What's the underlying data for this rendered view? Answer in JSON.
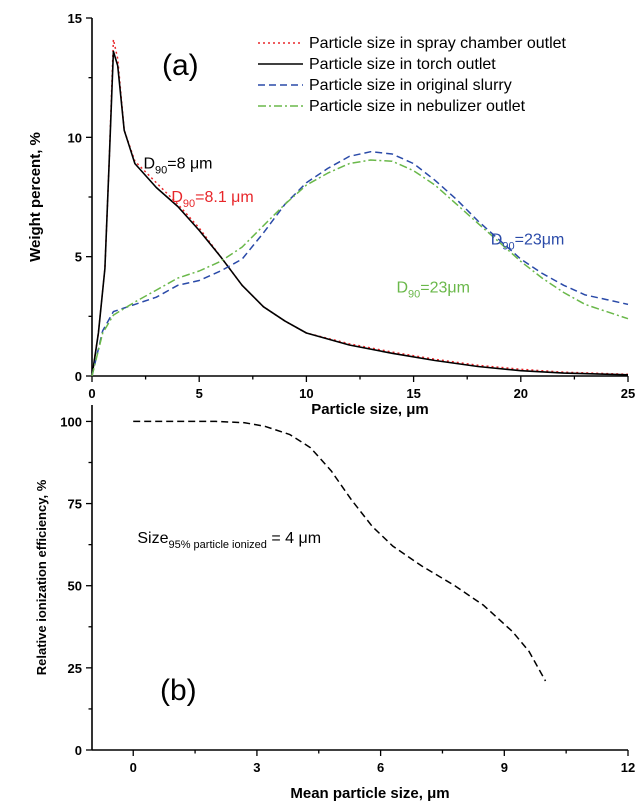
{
  "chart_data": [
    {
      "type": "line",
      "panel_label": "(a)",
      "xlabel": "Particle size, μm",
      "ylabel": "Weight percent, %",
      "xlim": [
        0,
        25
      ],
      "ylim": [
        0,
        15
      ],
      "xticks": [
        0,
        5,
        10,
        15,
        20,
        25
      ],
      "yticks": [
        0,
        5,
        10,
        15
      ],
      "grid": false,
      "legend_placement": "top-right",
      "series": [
        {
          "name": "Particle size in spray chamber outlet",
          "color": "#e8262a",
          "style": "dotted",
          "points": [
            [
              0,
              0
            ],
            [
              0.3,
              1.8
            ],
            [
              0.6,
              4.5
            ],
            [
              0.8,
              9
            ],
            [
              1.0,
              14.1
            ],
            [
              1.2,
              13.3
            ],
            [
              1.5,
              10.3
            ],
            [
              2,
              9.0
            ],
            [
              3,
              8.1
            ],
            [
              4,
              7.2
            ],
            [
              5,
              6.2
            ],
            [
              6,
              5.0
            ],
            [
              7,
              3.8
            ],
            [
              8,
              2.9
            ],
            [
              9,
              2.3
            ],
            [
              10,
              1.8
            ],
            [
              12,
              1.35
            ],
            [
              14,
              1.0
            ],
            [
              16,
              0.7
            ],
            [
              18,
              0.45
            ],
            [
              20,
              0.28
            ],
            [
              22,
              0.16
            ],
            [
              25,
              0.07
            ]
          ]
        },
        {
          "name": "Particle size in torch outlet",
          "color": "#000000",
          "style": "solid",
          "points": [
            [
              0,
              0
            ],
            [
              0.3,
              1.8
            ],
            [
              0.6,
              4.5
            ],
            [
              0.8,
              9
            ],
            [
              1.0,
              13.6
            ],
            [
              1.2,
              13.0
            ],
            [
              1.5,
              10.3
            ],
            [
              2,
              8.9
            ],
            [
              3,
              7.9
            ],
            [
              4,
              7.1
            ],
            [
              5,
              6.1
            ],
            [
              6,
              5.0
            ],
            [
              7,
              3.8
            ],
            [
              8,
              2.9
            ],
            [
              9,
              2.3
            ],
            [
              10,
              1.8
            ],
            [
              12,
              1.3
            ],
            [
              14,
              0.95
            ],
            [
              16,
              0.65
            ],
            [
              18,
              0.4
            ],
            [
              20,
              0.22
            ],
            [
              22,
              0.12
            ],
            [
              25,
              0.05
            ]
          ]
        },
        {
          "name": "Particle size in original slurry",
          "color": "#2a4aa8",
          "style": "dashed",
          "points": [
            [
              0,
              0
            ],
            [
              0.5,
              1.9
            ],
            [
              1,
              2.7
            ],
            [
              2,
              3.0
            ],
            [
              3,
              3.3
            ],
            [
              4,
              3.8
            ],
            [
              5,
              4.0
            ],
            [
              6,
              4.4
            ],
            [
              7,
              4.9
            ],
            [
              8,
              6.0
            ],
            [
              9,
              7.2
            ],
            [
              10,
              8.1
            ],
            [
              11,
              8.7
            ],
            [
              12,
              9.2
            ],
            [
              13,
              9.4
            ],
            [
              14,
              9.3
            ],
            [
              15,
              8.9
            ],
            [
              16,
              8.2
            ],
            [
              17,
              7.4
            ],
            [
              18,
              6.5
            ],
            [
              19,
              5.7
            ],
            [
              20,
              4.9
            ],
            [
              21,
              4.3
            ],
            [
              22,
              3.8
            ],
            [
              23,
              3.4
            ],
            [
              24,
              3.2
            ],
            [
              25,
              3.0
            ]
          ]
        },
        {
          "name": "Particle size in nebulizer outlet",
          "color": "#6ab84a",
          "style": "dashdot",
          "points": [
            [
              0,
              0
            ],
            [
              0.5,
              1.8
            ],
            [
              1,
              2.55
            ],
            [
              2,
              3.1
            ],
            [
              3,
              3.6
            ],
            [
              4,
              4.1
            ],
            [
              5,
              4.4
            ],
            [
              6,
              4.8
            ],
            [
              7,
              5.4
            ],
            [
              8,
              6.3
            ],
            [
              9,
              7.2
            ],
            [
              10,
              8.0
            ],
            [
              11,
              8.5
            ],
            [
              12,
              8.9
            ],
            [
              13,
              9.05
            ],
            [
              14,
              9.0
            ],
            [
              15,
              8.6
            ],
            [
              16,
              8.0
            ],
            [
              17,
              7.2
            ],
            [
              18,
              6.4
            ],
            [
              19,
              5.6
            ],
            [
              20,
              4.8
            ],
            [
              21,
              4.1
            ],
            [
              22,
              3.5
            ],
            [
              23,
              3.0
            ],
            [
              24,
              2.7
            ],
            [
              25,
              2.4
            ]
          ]
        }
      ],
      "annotations": [
        {
          "base": "D",
          "sub": "90",
          "rest": "=8 μm",
          "color": "#000000",
          "x": 2.4,
          "y": 8.7
        },
        {
          "base": "D",
          "sub": "90",
          "rest": "=8.1 μm",
          "color": "#e8262a",
          "x": 3.7,
          "y": 7.3
        },
        {
          "base": "D",
          "sub": "90",
          "rest": "=23μm",
          "color": "#2a4aa8",
          "x": 18.6,
          "y": 5.5
        },
        {
          "base": "D",
          "sub": "90",
          "rest": "=23μm",
          "color": "#6ab84a",
          "x": 14.2,
          "y": 3.5
        }
      ]
    },
    {
      "type": "line",
      "panel_label": "(b)",
      "xlabel": "Mean particle size, μm",
      "ylabel": "Relative ionization efficiency, %",
      "xlim": [
        -1,
        12
      ],
      "ylim": [
        0,
        105
      ],
      "xticks": [
        0,
        3,
        6,
        9,
        12
      ],
      "yticks": [
        0,
        25,
        50,
        75,
        100
      ],
      "grid": false,
      "series": [
        {
          "color": "#000000",
          "style": "dashed",
          "points": [
            [
              0,
              100
            ],
            [
              1,
              100
            ],
            [
              2,
              100
            ],
            [
              2.7,
              99.6
            ],
            [
              3.2,
              98.5
            ],
            [
              3.8,
              96
            ],
            [
              4.3,
              92
            ],
            [
              4.8,
              85
            ],
            [
              5.3,
              76
            ],
            [
              5.8,
              68
            ],
            [
              6.3,
              62
            ],
            [
              7,
              56
            ],
            [
              7.8,
              50
            ],
            [
              8.5,
              44
            ],
            [
              9.2,
              36
            ],
            [
              9.6,
              30
            ],
            [
              10,
              21
            ]
          ]
        }
      ],
      "annotation": {
        "base": "Size",
        "sub": "95% particle ionized",
        "rest": " = 4 μm",
        "x": 0.1,
        "y": 63
      }
    }
  ]
}
